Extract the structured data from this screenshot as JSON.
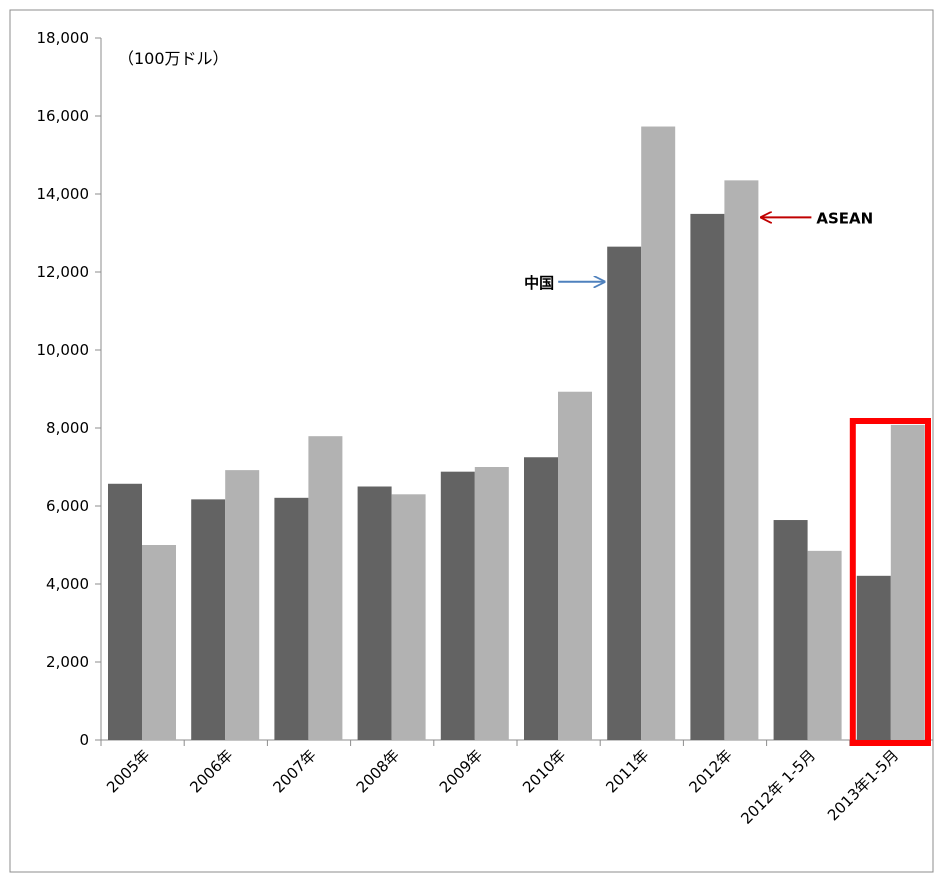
{
  "chart_data": {
    "type": "bar",
    "unit_label": "（100万ドル）",
    "categories": [
      "2005年",
      "2006年",
      "2007年",
      "2008年",
      "2009年",
      "2010年",
      "2011年",
      "2012年",
      "2012年 1-5月",
      "2013年1-5月"
    ],
    "series": [
      {
        "name": "中国",
        "color": "#636363",
        "values": [
          6570,
          6170,
          6210,
          6500,
          6880,
          7250,
          12650,
          13490,
          5640,
          4210
        ]
      },
      {
        "name": "ASEAN",
        "color": "#b2b2b2",
        "values": [
          5000,
          6920,
          7790,
          6300,
          7000,
          8930,
          15730,
          14350,
          4850,
          8080
        ]
      }
    ],
    "ylim": [
      0,
      18000
    ],
    "yticks": [
      0,
      2000,
      4000,
      6000,
      8000,
      10000,
      12000,
      14000,
      16000,
      18000
    ],
    "ytick_labels": [
      "0",
      "2,000",
      "4,000",
      "6,000",
      "8,000",
      "10,000",
      "12,000",
      "14,000",
      "16,000",
      "18,000"
    ],
    "grid": false,
    "highlight": {
      "category_index": 9,
      "color": "#ff0000"
    },
    "annotations": [
      {
        "text": "中国",
        "series": 0,
        "category_index": 6,
        "arrow_color": "#4f81bd",
        "at_value": 11750
      },
      {
        "text": "ASEAN",
        "series": 1,
        "category_index": 7,
        "arrow_color": "#c00000",
        "at_value": 13400
      }
    ]
  }
}
